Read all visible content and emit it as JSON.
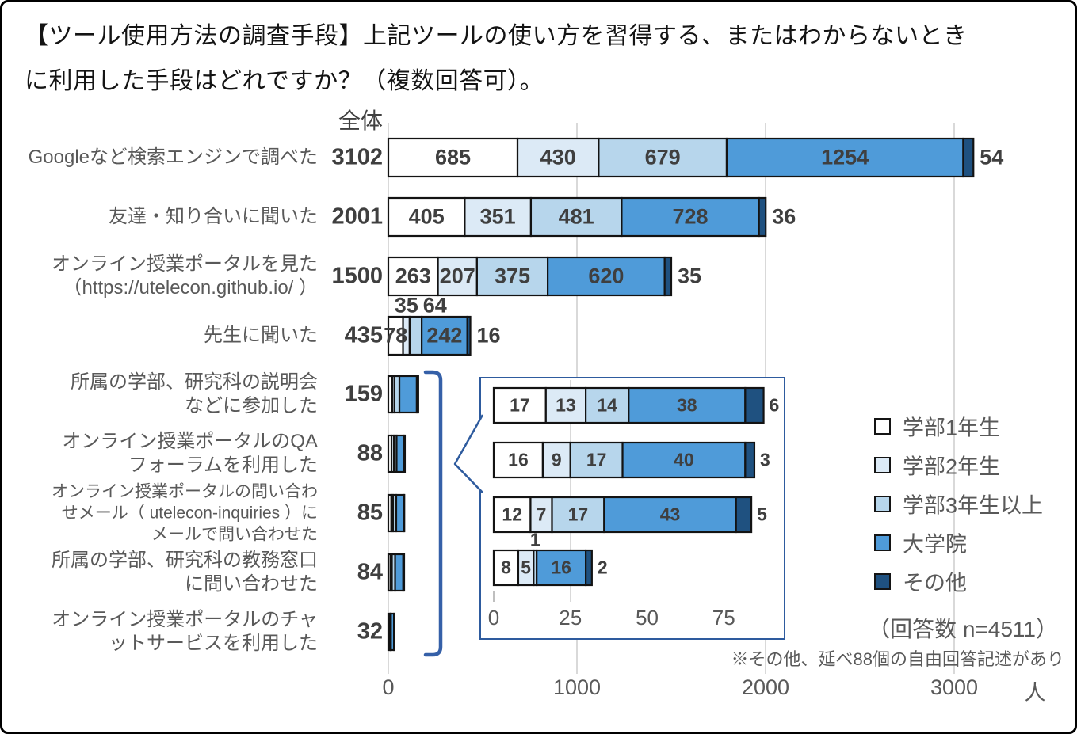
{
  "title": {
    "line1": "【ツール使用方法の調査手段】上記ツールの使い方を習得する、またはわからないとき",
    "line2": "に利用した手段はどれですか？（複数回答可）。"
  },
  "chart_data": {
    "type": "bar",
    "variant": "horizontal-stacked",
    "grid": true,
    "legend_position": "right",
    "overall_header": "全体",
    "unit": "人",
    "legend": [
      {
        "label": "学部1年生",
        "color": "#FFFFFF"
      },
      {
        "label": "学部2年生",
        "color": "#DCEAF6"
      },
      {
        "label": "学部3年生以上",
        "color": "#B7D6EC"
      },
      {
        "label": "大学院",
        "color": "#4F9BD9"
      },
      {
        "label": "その他",
        "color": "#1F5180"
      }
    ],
    "x_axis": {
      "ticks": [
        0,
        1000,
        2000,
        3000
      ],
      "max": 3500
    },
    "categories": [
      {
        "label_lines": [
          "Googleなど検索エンジンで調べた"
        ],
        "total": 3102,
        "values": [
          685,
          430,
          679,
          1254,
          54
        ],
        "label_placements": [
          "in",
          "in",
          "in",
          "in",
          "end"
        ]
      },
      {
        "label_lines": [
          "友達・知り合いに聞いた"
        ],
        "total": 2001,
        "values": [
          405,
          351,
          481,
          728,
          36
        ],
        "label_placements": [
          "in",
          "in",
          "in",
          "in",
          "end"
        ]
      },
      {
        "label_lines": [
          "オンライン授業ポータルを見た",
          "（https://utelecon.github.io/ ）"
        ],
        "total": 1500,
        "values": [
          263,
          207,
          375,
          620,
          35
        ],
        "label_placements": [
          "in",
          "in",
          "in",
          "in",
          "end"
        ]
      },
      {
        "label_lines": [
          "先生に聞いた"
        ],
        "total": 435,
        "values": [
          78,
          35,
          64,
          242,
          16
        ],
        "label_placements": [
          "in",
          "above",
          "above",
          "in",
          "end"
        ]
      },
      {
        "label_lines": [
          "所属の学部、研究科の説明会",
          "などに参加した"
        ],
        "total": 159,
        "values": [
          21,
          12,
          26,
          92,
          8
        ],
        "values_estimated_from_pixels": true,
        "label_placements": null
      },
      {
        "label_lines": [
          "オンライン授業ポータルのQA",
          "フォーラムを利用した"
        ],
        "total": 88,
        "values": [
          17,
          13,
          14,
          38,
          6
        ],
        "label_placements": null
      },
      {
        "label_lines": [
          "オンライン授業ポータルの問い合わ",
          "せメール（ utelecon-inquiries ）に",
          "メールで問い合わせた"
        ],
        "total": 85,
        "values": [
          16,
          9,
          17,
          40,
          3
        ],
        "label_placements": null
      },
      {
        "label_lines": [
          "所属の学部、研究科の教務窓口",
          "に問い合わせた"
        ],
        "total": 84,
        "values": [
          12,
          7,
          17,
          43,
          5
        ],
        "label_placements": null
      },
      {
        "label_lines": [
          "オンライン授業ポータルのチャ",
          "ットサービスを利用した"
        ],
        "total": 32,
        "values": [
          8,
          5,
          1,
          16,
          2
        ],
        "label_placements": null
      }
    ],
    "inset": {
      "x_axis_ticks": [
        0,
        25,
        50,
        75
      ],
      "rows": [
        {
          "category_index": 5,
          "values": [
            17,
            13,
            14,
            38,
            6
          ],
          "label_placements": [
            "in",
            "in",
            "in",
            "in",
            "end"
          ]
        },
        {
          "category_index": 6,
          "values": [
            16,
            9,
            17,
            40,
            3
          ],
          "label_placements": [
            "in",
            "in",
            "in",
            "in",
            "end"
          ]
        },
        {
          "category_index": 7,
          "values": [
            12,
            7,
            17,
            43,
            5
          ],
          "label_placements": [
            "in",
            "in",
            "in",
            "in",
            "end"
          ]
        },
        {
          "category_index": 8,
          "values": [
            8,
            5,
            1,
            16,
            2
          ],
          "label_placements": [
            "in",
            "in",
            "above",
            "in",
            "end"
          ]
        }
      ]
    },
    "notes": {
      "respondents": "（回答数 n=4511）",
      "footnote": "※その他、延べ88個の自由回答記述があり"
    }
  }
}
